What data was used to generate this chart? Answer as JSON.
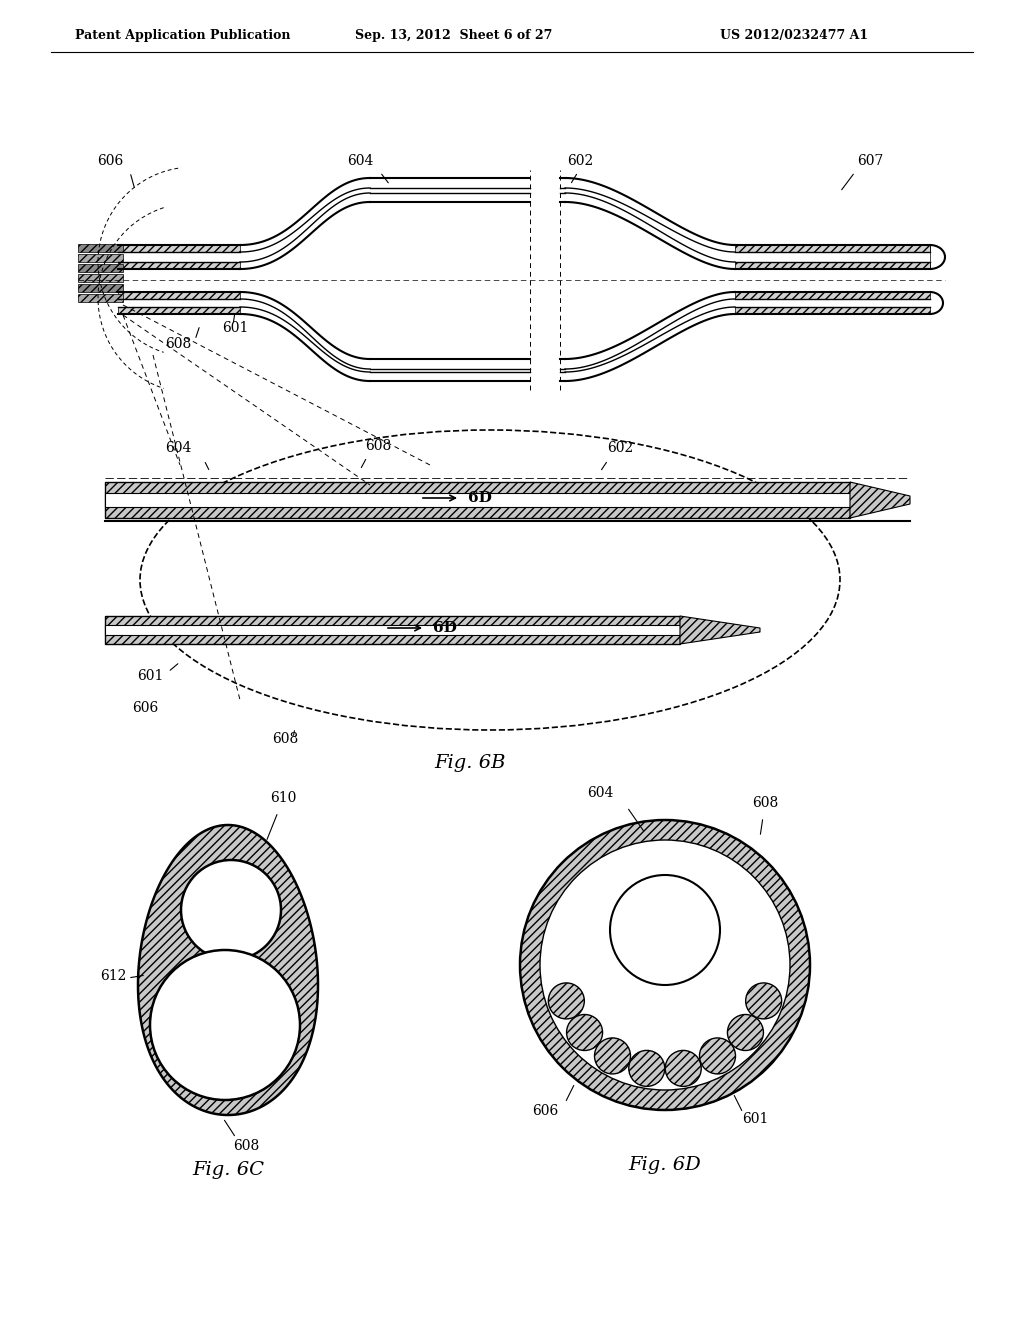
{
  "bg_color": "#ffffff",
  "header_left": "Patent Application Publication",
  "header_center": "Sep. 13, 2012  Sheet 6 of 27",
  "header_right": "US 2012/0232477 A1",
  "fig_label_6B": "Fig. 6B",
  "fig_label_6C": "Fig. 6C",
  "fig_label_6D": "Fig. 6D"
}
